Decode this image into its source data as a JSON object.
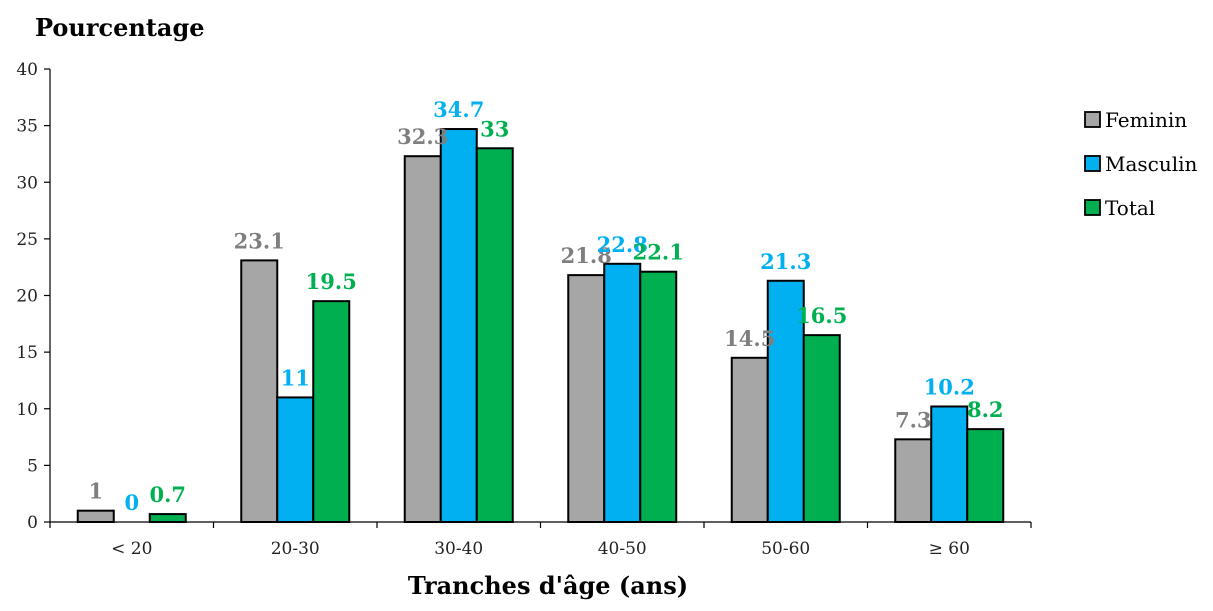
{
  "chart_data": {
    "type": "bar",
    "title": "",
    "ylabel": "Pourcentage",
    "xlabel": "Tranches d'âge (ans)",
    "categories": [
      "< 20",
      "20-30",
      "30-40",
      "40-50",
      "50-60",
      "≥ 60"
    ],
    "ylim": [
      0,
      40
    ],
    "yticks": [
      0,
      5,
      10,
      15,
      20,
      25,
      30,
      35,
      40
    ],
    "grid": false,
    "legend_position": "right",
    "series": [
      {
        "name": "Feminin",
        "color": "#a6a6a6",
        "label_color": "#7f7f7f",
        "values": [
          1,
          23.1,
          32.3,
          21.8,
          14.5,
          7.3
        ],
        "labels": [
          "1",
          "23.1",
          "32.3",
          "21.8",
          "14.5",
          "7.3"
        ]
      },
      {
        "name": "Masculin",
        "color": "#00b0f0",
        "label_color": "#00b0f0",
        "values": [
          0,
          11,
          34.7,
          22.8,
          21.3,
          10.2
        ],
        "labels": [
          "0",
          "11",
          "34.7",
          "22.8",
          "21.3",
          "10.2"
        ]
      },
      {
        "name": "Total",
        "color": "#00b050",
        "label_color": "#00b050",
        "values": [
          0.7,
          19.5,
          33,
          22.1,
          16.5,
          8.2
        ],
        "labels": [
          "0.7",
          "19.5",
          "33",
          "22.1",
          "16.5",
          "8.2"
        ]
      }
    ]
  }
}
